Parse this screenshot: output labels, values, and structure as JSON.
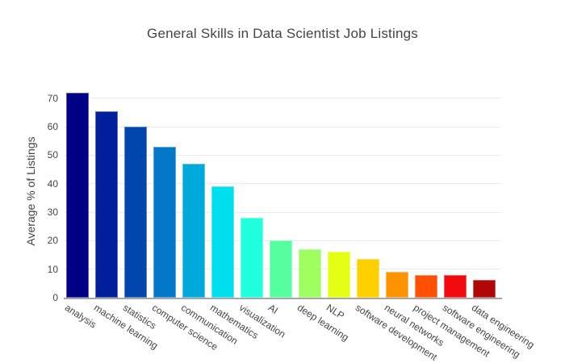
{
  "chart": {
    "title": "General Skills in Data Scientist Job Listings",
    "ylabel": "Average % of Listings"
  },
  "chart_data": {
    "type": "bar",
    "title": "General Skills in Data Scientist Job Listings",
    "xlabel": "",
    "ylabel": "Average % of Listings",
    "categories": [
      "analysis",
      "machine learning",
      "statistics",
      "computer science",
      "communication",
      "mathematics",
      "visualization",
      "AI",
      "deep learning",
      "NLP",
      "software development",
      "neural networks",
      "project management",
      "software engineering",
      "data engineering"
    ],
    "values": [
      72,
      65.5,
      60,
      53,
      47,
      39,
      28,
      20,
      17,
      16,
      13.5,
      9,
      8,
      8,
      6.3
    ],
    "bar_colors": [
      "#000087",
      "#00209B",
      "#0046AD",
      "#0277C8",
      "#00A9DB",
      "#00DFEE",
      "#20FFDE",
      "#55FF9F",
      "#9FFF60",
      "#E5FF14",
      "#FFD000",
      "#FF9400",
      "#FF4F00",
      "#F30A0F",
      "#B20707"
    ],
    "yticks": [
      0,
      10,
      20,
      30,
      40,
      50,
      60,
      70
    ],
    "ylim": [
      0,
      75
    ],
    "grid": true,
    "legend": "none",
    "background_color": "#ffffff",
    "gridline_color": "#ebebeb",
    "axis_line_color": "#a6a6a6",
    "text_color": "#444444"
  }
}
